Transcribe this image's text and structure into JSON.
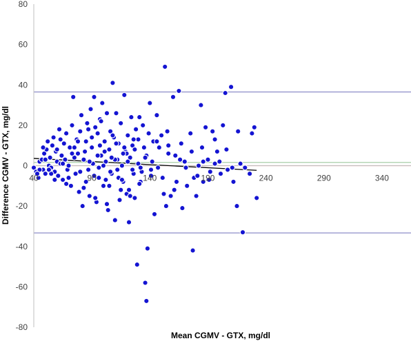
{
  "chart_data": {
    "type": "scatter",
    "title": "",
    "xlabel": "Mean CGMV - GTX, mg/dl",
    "ylabel": "Difference CGMV - GTX, mg/dl",
    "xlim": [
      40,
      365
    ],
    "ylim": [
      -80,
      80
    ],
    "x_ticks": [
      40,
      90,
      140,
      190,
      240,
      290,
      340
    ],
    "y_ticks": [
      -80,
      -60,
      -40,
      -20,
      0,
      20,
      40,
      60,
      80
    ],
    "x_tick_labels": [
      "40",
      "90",
      "140",
      "190",
      "240",
      "290",
      "340"
    ],
    "y_tick_labels": [
      "-80",
      "-60",
      "-40",
      "-20",
      "0",
      "20",
      "40",
      "60",
      "80"
    ],
    "grid": false,
    "legend": "none",
    "reference_lines": [
      {
        "y": 36.5,
        "color": "#8c8cc8"
      },
      {
        "y": -33.3,
        "color": "#8c8cc8"
      },
      {
        "y": 0,
        "color": "#e38a8a"
      },
      {
        "y": 1.6,
        "color": "#9ec79e"
      }
    ],
    "trend_line": {
      "x": [
        40,
        232
      ],
      "y": [
        3.6,
        -2.3
      ],
      "color": "#000000"
    },
    "point_color": "#1414d2",
    "points": [
      [
        40,
        -1
      ],
      [
        42,
        -3
      ],
      [
        44,
        -6
      ],
      [
        45,
        2
      ],
      [
        47,
        3
      ],
      [
        48,
        -2
      ],
      [
        49,
        6
      ],
      [
        50,
        -4
      ],
      [
        51,
        8
      ],
      [
        52,
        12
      ],
      [
        53,
        0
      ],
      [
        54,
        4
      ],
      [
        55,
        -1
      ],
      [
        56,
        10
      ],
      [
        57,
        14
      ],
      [
        58,
        -3
      ],
      [
        59,
        7
      ],
      [
        60,
        2
      ],
      [
        61,
        -5
      ],
      [
        62,
        18
      ],
      [
        63,
        1
      ],
      [
        64,
        5
      ],
      [
        65,
        -7
      ],
      [
        66,
        11
      ],
      [
        67,
        3
      ],
      [
        68,
        16
      ],
      [
        69,
        -2
      ],
      [
        70,
        0
      ],
      [
        71,
        9
      ],
      [
        72,
        -10
      ],
      [
        73,
        20
      ],
      [
        74,
        34
      ],
      [
        75,
        4
      ],
      [
        76,
        -4
      ],
      [
        77,
        13
      ],
      [
        78,
        6
      ],
      [
        79,
        -13
      ],
      [
        80,
        17
      ],
      [
        81,
        25
      ],
      [
        82,
        -20
      ],
      [
        83,
        3
      ],
      [
        84,
        7
      ],
      [
        85,
        12
      ],
      [
        86,
        21
      ],
      [
        87,
        -2
      ],
      [
        88,
        -15
      ],
      [
        89,
        28
      ],
      [
        90,
        9
      ],
      [
        91,
        1
      ],
      [
        92,
        34
      ],
      [
        93,
        19
      ],
      [
        94,
        -18
      ],
      [
        95,
        16
      ],
      [
        96,
        -6
      ],
      [
        97,
        23
      ],
      [
        98,
        5
      ],
      [
        99,
        31
      ],
      [
        100,
        -10
      ],
      [
        101,
        12
      ],
      [
        102,
        2
      ],
      [
        103,
        26
      ],
      [
        104,
        -22
      ],
      [
        105,
        8
      ],
      [
        106,
        17
      ],
      [
        107,
        -4
      ],
      [
        108,
        41
      ],
      [
        109,
        14
      ],
      [
        110,
        -27
      ],
      [
        111,
        26
      ],
      [
        112,
        3
      ],
      [
        113,
        11
      ],
      [
        114,
        -17
      ],
      [
        115,
        21
      ],
      [
        116,
        0
      ],
      [
        117,
        -8
      ],
      [
        118,
        35
      ],
      [
        119,
        7
      ],
      [
        120,
        -14
      ],
      [
        121,
        15
      ],
      [
        122,
        -28
      ],
      [
        123,
        4
      ],
      [
        124,
        24
      ],
      [
        125,
        10
      ],
      [
        126,
        -4
      ],
      [
        127,
        -16
      ],
      [
        128,
        18
      ],
      [
        129,
        -49
      ],
      [
        130,
        1
      ],
      [
        131,
        24
      ],
      [
        132,
        -8
      ],
      [
        133,
        -3
      ],
      [
        134,
        20
      ],
      [
        135,
        9
      ],
      [
        136,
        -58
      ],
      [
        137,
        -67
      ],
      [
        138,
        -41
      ],
      [
        139,
        16
      ],
      [
        140,
        31
      ],
      [
        141,
        -5
      ],
      [
        142,
        2
      ],
      [
        143,
        12
      ],
      [
        144,
        -24
      ],
      [
        146,
        25
      ],
      [
        147,
        -1
      ],
      [
        148,
        9
      ],
      [
        150,
        15
      ],
      [
        152,
        -14
      ],
      [
        153,
        49
      ],
      [
        154,
        -20
      ],
      [
        155,
        17
      ],
      [
        156,
        6
      ],
      [
        158,
        -15
      ],
      [
        160,
        34
      ],
      [
        162,
        5
      ],
      [
        163,
        -8
      ],
      [
        165,
        37
      ],
      [
        167,
        11
      ],
      [
        168,
        -21
      ],
      [
        170,
        2
      ],
      [
        172,
        -10
      ],
      [
        175,
        16
      ],
      [
        177,
        -42
      ],
      [
        178,
        -6
      ],
      [
        180,
        -15
      ],
      [
        182,
        0
      ],
      [
        184,
        30
      ],
      [
        185,
        9
      ],
      [
        186,
        -8
      ],
      [
        188,
        19
      ],
      [
        190,
        3
      ],
      [
        192,
        -3
      ],
      [
        194,
        17
      ],
      [
        196,
        13
      ],
      [
        198,
        7
      ],
      [
        200,
        2
      ],
      [
        203,
        20
      ],
      [
        205,
        36
      ],
      [
        207,
        -2
      ],
      [
        210,
        39
      ],
      [
        212,
        -8
      ],
      [
        215,
        -20
      ],
      [
        216,
        17
      ],
      [
        218,
        1
      ],
      [
        220,
        -33
      ],
      [
        222,
        -1
      ],
      [
        226,
        -4
      ],
      [
        228,
        16
      ],
      [
        230,
        19
      ],
      [
        232,
        -16
      ],
      [
        95,
        5
      ],
      [
        100,
        0
      ],
      [
        105,
        -10
      ],
      [
        110,
        3
      ],
      [
        115,
        -12
      ],
      [
        120,
        6
      ],
      [
        125,
        -2
      ],
      [
        130,
        13
      ],
      [
        85,
        -8
      ],
      [
        90,
        14
      ],
      [
        80,
        -3
      ],
      [
        75,
        9
      ],
      [
        70,
        -6
      ],
      [
        65,
        1
      ],
      [
        60,
        8
      ],
      [
        55,
        -4
      ],
      [
        50,
        3
      ],
      [
        45,
        -2
      ],
      [
        88,
        2
      ],
      [
        92,
        -5
      ],
      [
        97,
        10
      ],
      [
        102,
        -7
      ],
      [
        107,
        4
      ],
      [
        112,
        -2
      ],
      [
        117,
        6
      ],
      [
        122,
        -12
      ],
      [
        127,
        8
      ],
      [
        132,
        -1
      ],
      [
        137,
        5
      ],
      [
        78,
        12
      ],
      [
        83,
        -11
      ],
      [
        87,
        18
      ],
      [
        93,
        -16
      ],
      [
        98,
        22
      ],
      [
        103,
        -19
      ],
      [
        108,
        15
      ],
      [
        113,
        -6
      ],
      [
        118,
        9
      ],
      [
        123,
        -15
      ],
      [
        68,
        -9
      ],
      [
        73,
        6
      ],
      [
        58,
        -7
      ],
      [
        63,
        13
      ],
      [
        53,
        -2
      ],
      [
        48,
        9
      ],
      [
        43,
        -4
      ],
      [
        96,
        -1
      ],
      [
        101,
        7
      ],
      [
        106,
        -3
      ],
      [
        111,
        11
      ],
      [
        116,
        -7
      ],
      [
        121,
        2
      ],
      [
        126,
        13
      ],
      [
        131,
        -9
      ],
      [
        136,
        4
      ],
      [
        141,
        -2
      ],
      [
        146,
        12
      ],
      [
        151,
        -6
      ],
      [
        156,
        10
      ],
      [
        161,
        -12
      ],
      [
        166,
        3
      ],
      [
        171,
        -1
      ],
      [
        176,
        7
      ],
      [
        181,
        -5
      ],
      [
        186,
        2
      ],
      [
        191,
        -7
      ],
      [
        196,
        1
      ],
      [
        201,
        -4
      ],
      [
        206,
        8
      ],
      [
        211,
        -1
      ]
    ]
  }
}
